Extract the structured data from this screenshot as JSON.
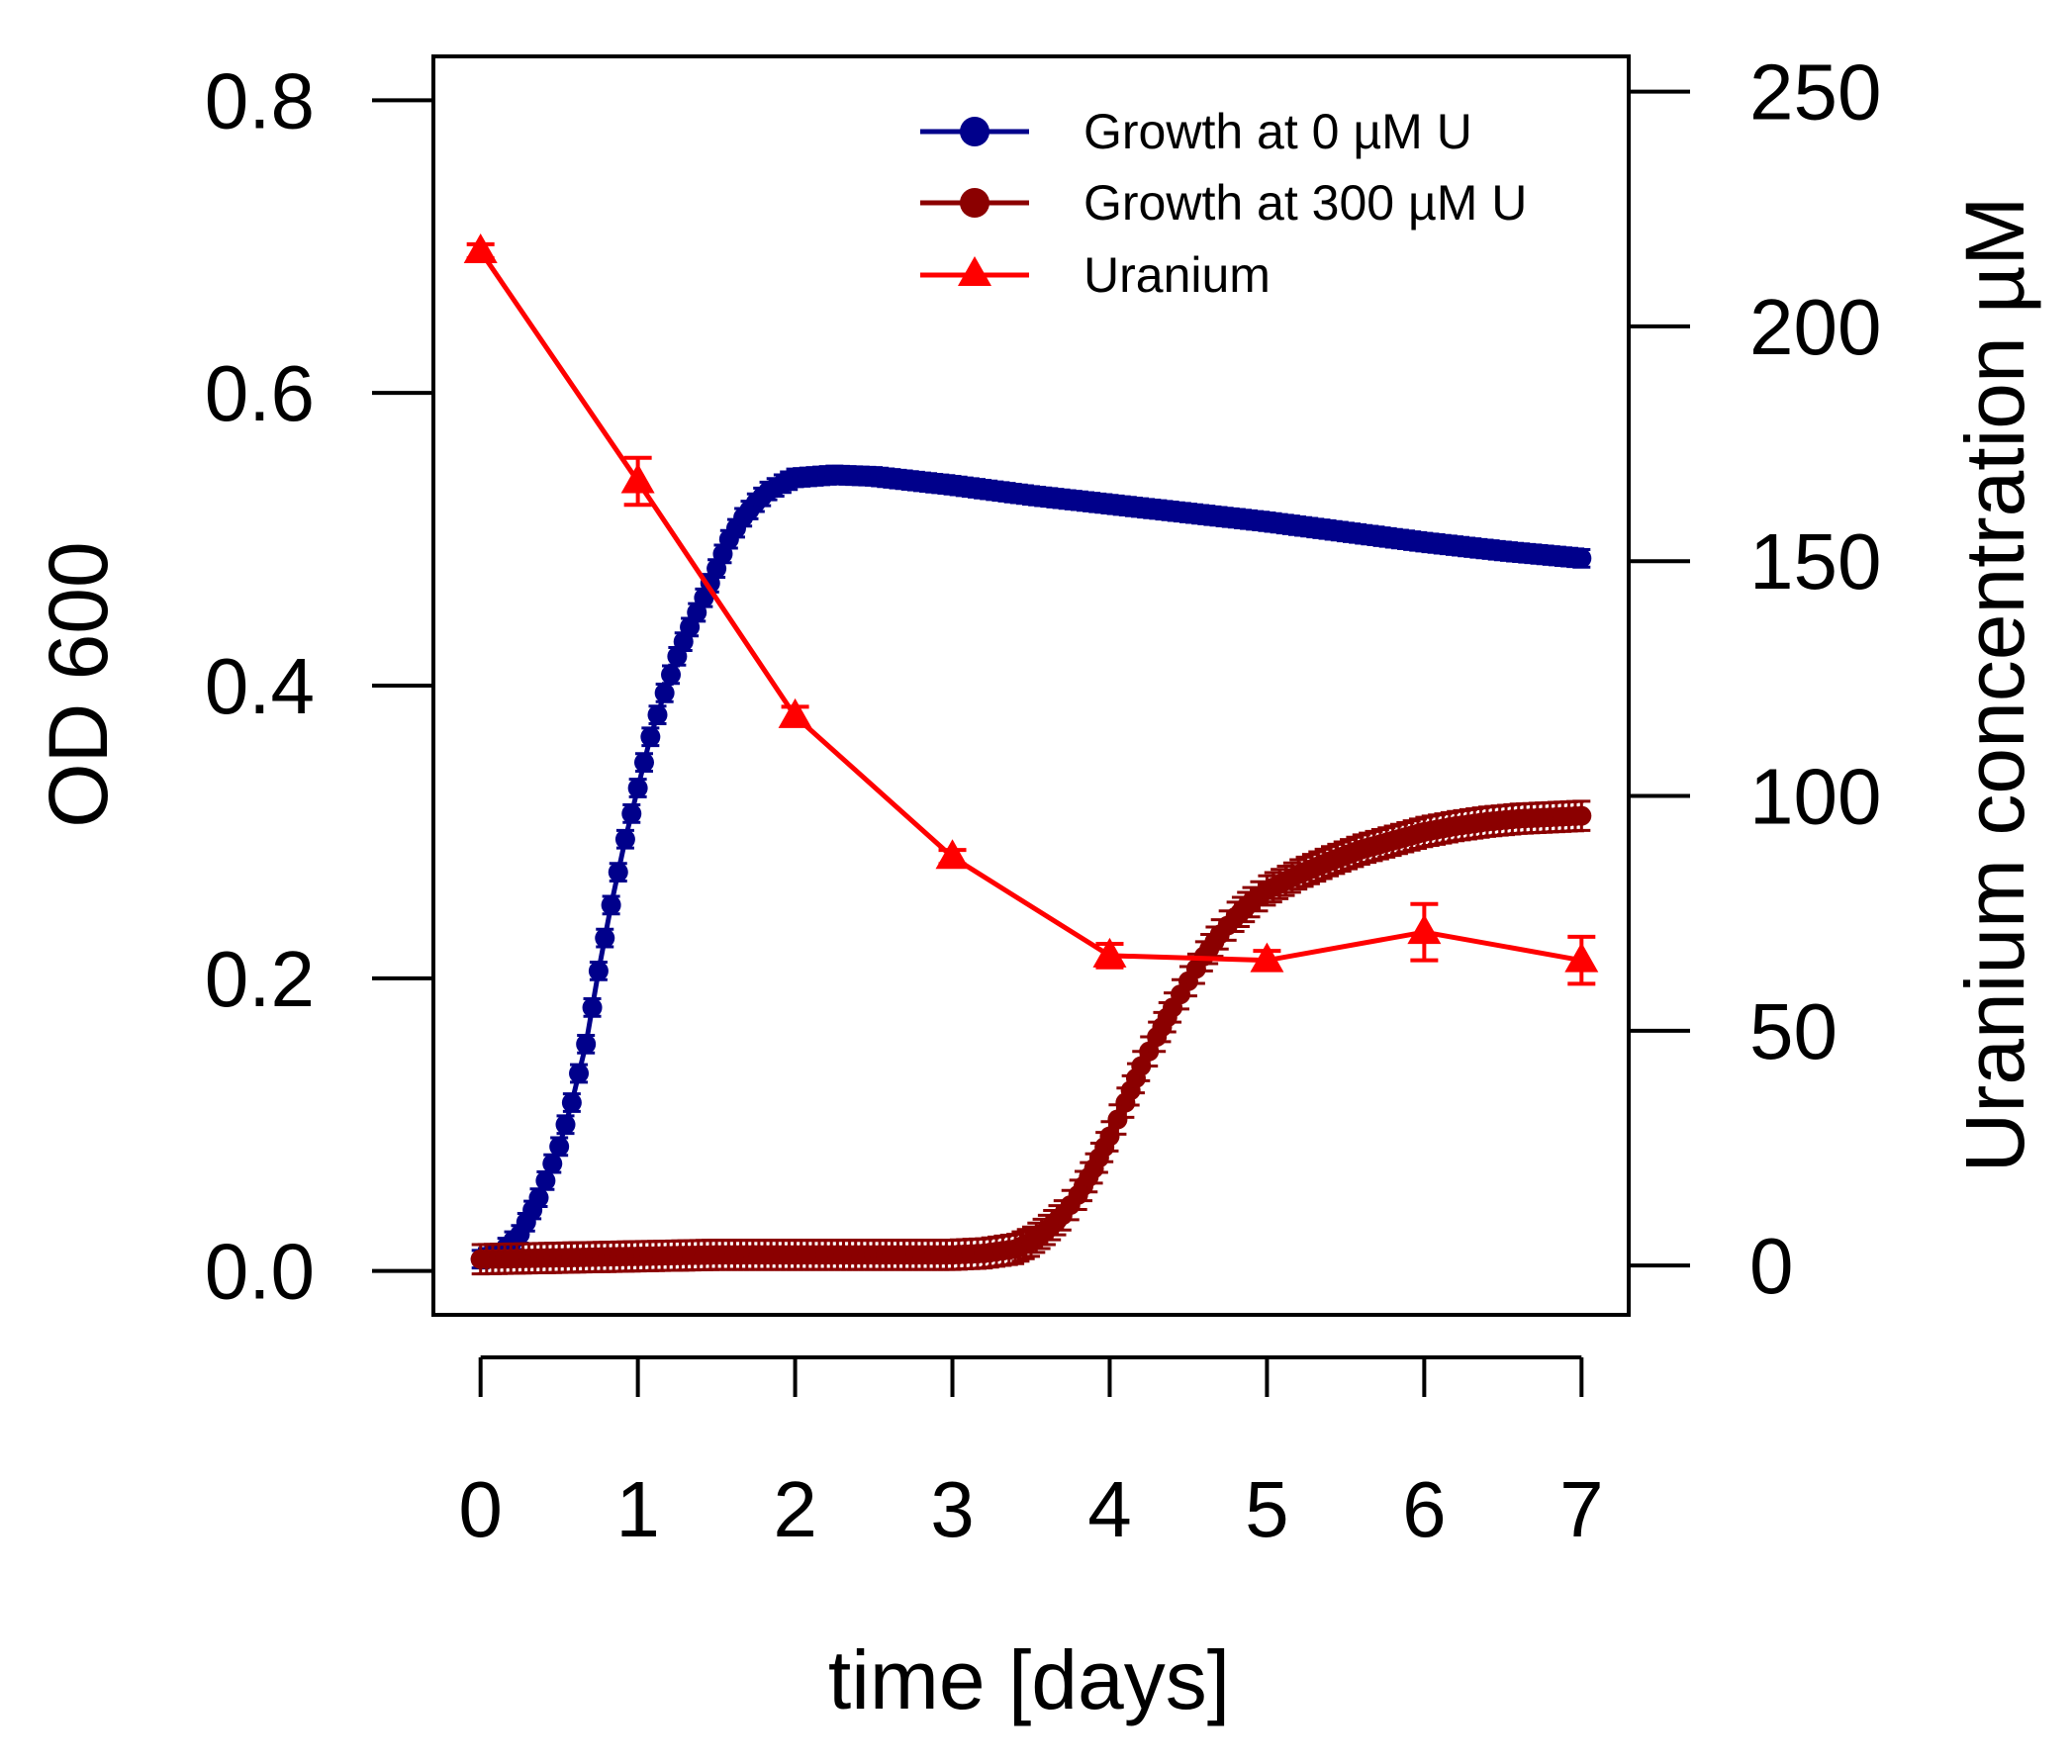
{
  "chart_data": {
    "type": "line",
    "xlabel": "time [days]",
    "ylabel": "OD 600",
    "y2label": "Uranium concentration µM",
    "xlim": [
      -0.3,
      7.3
    ],
    "ylim": [
      -0.03,
      0.83
    ],
    "y2lim": [
      -10.5,
      257.5
    ],
    "x_ticks": [
      0,
      1,
      2,
      3,
      4,
      5,
      6,
      7
    ],
    "y_ticks": [
      0.0,
      0.2,
      0.4,
      0.6,
      0.8
    ],
    "y_tick_labels": [
      "0.0",
      "0.2",
      "0.4",
      "0.6",
      "0.8"
    ],
    "y2_ticks": [
      0,
      50,
      100,
      150,
      200,
      250
    ],
    "legend_position": "top-right",
    "series": [
      {
        "name": "Growth at 0 µM U",
        "color": "#00008B",
        "marker": "circle",
        "axis": "left",
        "x": [
          0,
          0.12,
          0.25,
          0.37,
          0.5,
          0.58,
          0.67,
          0.75,
          0.83,
          0.92,
          1.0,
          1.08,
          1.17,
          1.25,
          1.33,
          1.42,
          1.5,
          1.58,
          1.67,
          1.75,
          1.83,
          1.92,
          2.0,
          2.25,
          2.5,
          3.0,
          3.5,
          4.0,
          4.5,
          5.0,
          5.5,
          6.0,
          6.5,
          7.0
        ],
        "y": [
          0.008,
          0.012,
          0.025,
          0.05,
          0.085,
          0.115,
          0.155,
          0.205,
          0.25,
          0.295,
          0.33,
          0.365,
          0.395,
          0.42,
          0.44,
          0.46,
          0.48,
          0.5,
          0.515,
          0.525,
          0.533,
          0.538,
          0.542,
          0.544,
          0.543,
          0.537,
          0.53,
          0.524,
          0.518,
          0.512,
          0.505,
          0.498,
          0.492,
          0.487
        ],
        "error": 0.006
      },
      {
        "name": "Growth at 300 µM U",
        "color": "#8B0000",
        "marker": "circle",
        "axis": "left",
        "x": [
          0,
          0.5,
          1.0,
          1.5,
          2.0,
          2.5,
          3.0,
          3.2,
          3.4,
          3.5,
          3.6,
          3.7,
          3.8,
          3.9,
          4.0,
          4.1,
          4.2,
          4.3,
          4.4,
          4.5,
          4.6,
          4.7,
          4.8,
          4.9,
          5.0,
          5.2,
          5.4,
          5.6,
          5.8,
          6.0,
          6.2,
          6.4,
          6.6,
          6.8,
          7.0
        ],
        "y": [
          0.008,
          0.009,
          0.01,
          0.011,
          0.011,
          0.011,
          0.011,
          0.012,
          0.015,
          0.02,
          0.028,
          0.038,
          0.052,
          0.07,
          0.092,
          0.115,
          0.14,
          0.16,
          0.18,
          0.198,
          0.215,
          0.23,
          0.242,
          0.252,
          0.26,
          0.271,
          0.28,
          0.288,
          0.294,
          0.3,
          0.304,
          0.307,
          0.309,
          0.31,
          0.311
        ],
        "error": 0.01
      },
      {
        "name": "Uranium",
        "color": "#FF0000",
        "marker": "triangle",
        "axis": "right",
        "x": [
          0,
          1,
          2,
          3,
          4,
          5,
          6,
          7
        ],
        "y": [
          216,
          167,
          117,
          87,
          66,
          65,
          71,
          65
        ],
        "error": [
          1.5,
          5,
          2,
          1.5,
          2.5,
          2,
          6,
          5
        ]
      }
    ]
  }
}
